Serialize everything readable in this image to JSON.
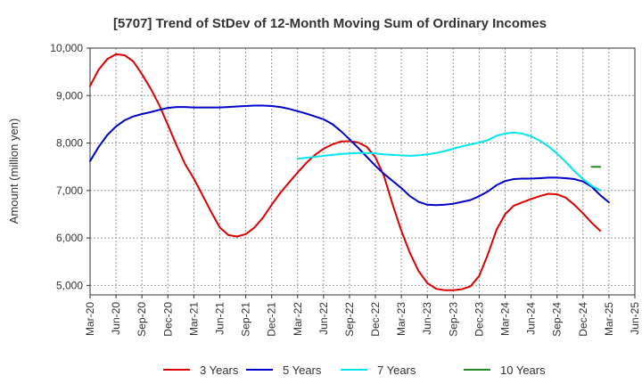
{
  "chart_data": {
    "type": "line",
    "title": "[5707]  Trend of StDev of 12-Month Moving Sum of Ordinary Incomes",
    "ylabel": "Amount (million yen)",
    "xlabel": "",
    "ylim": [
      4800,
      10000
    ],
    "yticks": [
      5000,
      6000,
      7000,
      8000,
      9000,
      10000
    ],
    "ytick_labels": [
      "5,000",
      "6,000",
      "7,000",
      "8,000",
      "9,000",
      "10,000"
    ],
    "x_start": "Mar-20",
    "x_months": 63,
    "xtick_labels": [
      "Mar-20",
      "Jun-20",
      "Sep-20",
      "Dec-20",
      "Mar-21",
      "Jun-21",
      "Sep-21",
      "Dec-21",
      "Mar-22",
      "Jun-22",
      "Sep-22",
      "Dec-22",
      "Mar-23",
      "Jun-23",
      "Sep-23",
      "Dec-23",
      "Mar-24",
      "Jun-24",
      "Sep-24",
      "Dec-24",
      "Mar-25",
      "Jun-25"
    ],
    "grid": true,
    "legend_position": "bottom",
    "series": [
      {
        "name": "3 Years",
        "color": "#dd0000",
        "start_index": 0,
        "values": [
          9200,
          9550,
          9770,
          9870,
          9850,
          9720,
          9450,
          9150,
          8800,
          8380,
          7950,
          7550,
          7250,
          6900,
          6550,
          6220,
          6060,
          6030,
          6080,
          6220,
          6430,
          6700,
          6950,
          7170,
          7380,
          7580,
          7750,
          7880,
          7970,
          8030,
          8040,
          8010,
          7920,
          7700,
          7300,
          6700,
          6150,
          5680,
          5300,
          5050,
          4930,
          4900,
          4900,
          4920,
          4980,
          5200,
          5650,
          6170,
          6500,
          6680,
          6750,
          6820,
          6880,
          6930,
          6920,
          6850,
          6700,
          6520,
          6320,
          6150
        ]
      },
      {
        "name": "5 Years",
        "color": "#0000cc",
        "start_index": 0,
        "values": [
          7620,
          7920,
          8170,
          8350,
          8480,
          8560,
          8610,
          8650,
          8700,
          8740,
          8760,
          8760,
          8750,
          8750,
          8750,
          8750,
          8760,
          8770,
          8780,
          8790,
          8790,
          8780,
          8760,
          8720,
          8670,
          8620,
          8560,
          8500,
          8400,
          8250,
          8080,
          7900,
          7710,
          7520,
          7350,
          7200,
          7050,
          6880,
          6760,
          6700,
          6690,
          6700,
          6720,
          6760,
          6800,
          6880,
          6980,
          7110,
          7200,
          7240,
          7250,
          7250,
          7260,
          7270,
          7270,
          7260,
          7240,
          7190,
          7080,
          6900,
          6750
        ]
      },
      {
        "name": "7 Years",
        "color": "#00e5ee",
        "start_index": 24,
        "values": [
          7670,
          7690,
          7710,
          7730,
          7750,
          7770,
          7780,
          7790,
          7790,
          7780,
          7760,
          7750,
          7740,
          7730,
          7740,
          7760,
          7790,
          7830,
          7880,
          7930,
          7970,
          8010,
          8060,
          8150,
          8200,
          8220,
          8200,
          8140,
          8050,
          7930,
          7780,
          7600,
          7410,
          7240,
          7100,
          7000
        ]
      },
      {
        "name": "10 Years",
        "color": "#228b22",
        "start_index": 58,
        "values": [
          7500,
          7500
        ]
      }
    ]
  }
}
